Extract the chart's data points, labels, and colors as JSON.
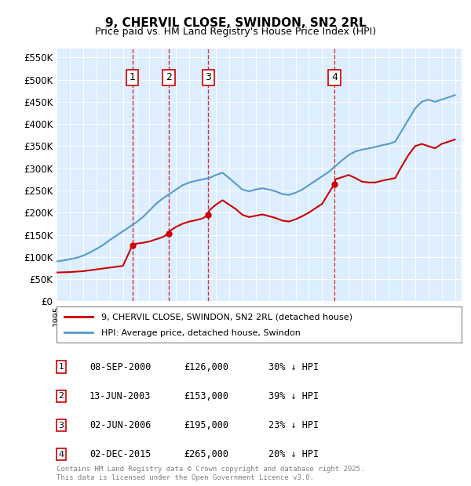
{
  "title": "9, CHERVIL CLOSE, SWINDON, SN2 2RL",
  "subtitle": "Price paid vs. HM Land Registry's House Price Index (HPI)",
  "ylabel_ticks": [
    "£0",
    "£50K",
    "£100K",
    "£150K",
    "£200K",
    "£250K",
    "£300K",
    "£350K",
    "£400K",
    "£450K",
    "£500K",
    "£550K"
  ],
  "ylim": [
    0,
    570000
  ],
  "xlim_start": 1995.0,
  "xlim_end": 2025.5,
  "sale_dates": [
    "2000-09-08",
    "2003-06-13",
    "2006-06-02",
    "2015-12-02"
  ],
  "sale_prices": [
    126000,
    153000,
    195000,
    265000
  ],
  "sale_labels": [
    "1",
    "2",
    "3",
    "4"
  ],
  "sale_info": [
    {
      "label": "1",
      "date": "08-SEP-2000",
      "price": "£126,000",
      "pct": "30% ↓ HPI"
    },
    {
      "label": "2",
      "date": "13-JUN-2003",
      "price": "£153,000",
      "pct": "39% ↓ HPI"
    },
    {
      "label": "3",
      "date": "02-JUN-2006",
      "price": "£195,000",
      "pct": "23% ↓ HPI"
    },
    {
      "label": "4",
      "date": "02-DEC-2015",
      "price": "£265,000",
      "pct": "20% ↓ HPI"
    }
  ],
  "legend_line1": "9, CHERVIL CLOSE, SWINDON, SN2 2RL (detached house)",
  "legend_line2": "HPI: Average price, detached house, Swindon",
  "footer": "Contains HM Land Registry data © Crown copyright and database right 2025.\nThis data is licensed under the Open Government Licence v3.0.",
  "hpi_color": "#6baed6",
  "sale_color": "#cc0000",
  "box_color": "#cc0000",
  "vline_color": "#cc0000",
  "bg_color": "#ddeeff",
  "hpi_line_color": "#5599cc"
}
